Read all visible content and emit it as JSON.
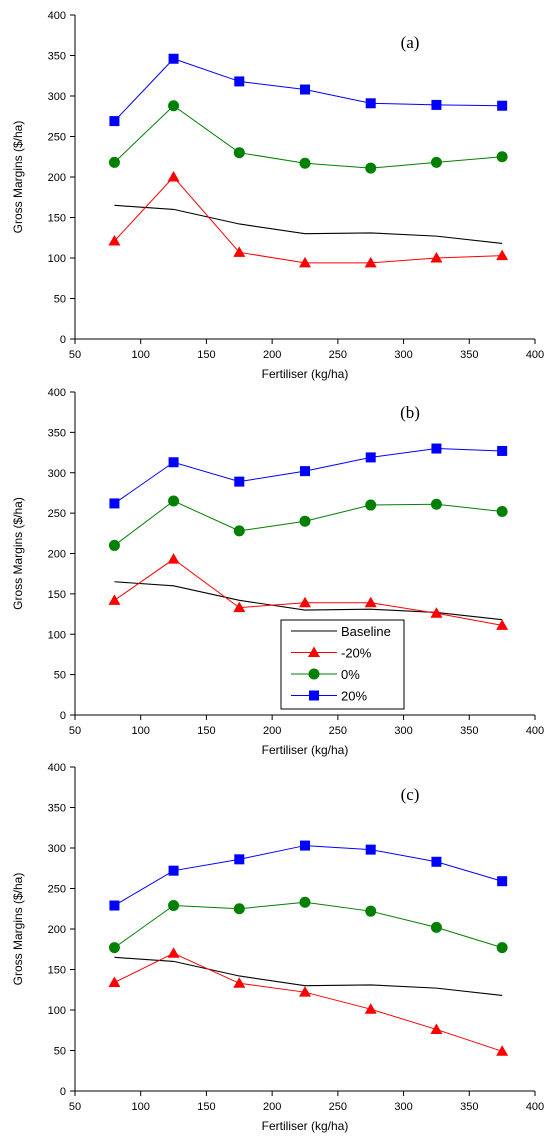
{
  "colors": {
    "baseline": "#000000",
    "minus20": "#ff0000",
    "zero": "#008000",
    "plus20": "#0000ff",
    "axis": "#000000"
  },
  "legend": {
    "entries": [
      {
        "label": "Baseline",
        "key": "baseline",
        "marker": "none"
      },
      {
        "label": "-20%",
        "key": "minus20",
        "marker": "triangle"
      },
      {
        "label": "0%",
        "key": "zero",
        "marker": "circle"
      },
      {
        "label": "20%",
        "key": "plus20",
        "marker": "square"
      }
    ]
  },
  "chart_data": [
    {
      "type": "line",
      "panel_label": "(a)",
      "xlabel": "Fertiliser (kg/ha)",
      "ylabel": "Gross Margins ($/ha)",
      "xlim": [
        50,
        400
      ],
      "ylim": [
        0,
        400
      ],
      "xticks": [
        50,
        100,
        150,
        200,
        250,
        300,
        350,
        400
      ],
      "yticks": [
        0,
        50,
        100,
        150,
        200,
        250,
        300,
        350,
        400
      ],
      "x": [
        80,
        125,
        175,
        225,
        275,
        325,
        375
      ],
      "series": [
        {
          "name": "Baseline",
          "key": "baseline",
          "marker": "none",
          "values": [
            165,
            160,
            142,
            130,
            131,
            127,
            118
          ]
        },
        {
          "name": "-20%",
          "key": "minus20",
          "marker": "triangle",
          "values": [
            121,
            200,
            107,
            94,
            94,
            100,
            103
          ]
        },
        {
          "name": "0%",
          "key": "zero",
          "marker": "circle",
          "values": [
            218,
            288,
            230,
            217,
            211,
            218,
            225
          ]
        },
        {
          "name": "20%",
          "key": "plus20",
          "marker": "square",
          "values": [
            269,
            346,
            318,
            308,
            291,
            289,
            288
          ]
        }
      ]
    },
    {
      "type": "line",
      "panel_label": "(b)",
      "xlabel": "Fertiliser (kg/ha)",
      "ylabel": "Gross Margins ($/ha)",
      "xlim": [
        50,
        400
      ],
      "ylim": [
        0,
        400
      ],
      "xticks": [
        50,
        100,
        150,
        200,
        250,
        300,
        350,
        400
      ],
      "yticks": [
        0,
        50,
        100,
        150,
        200,
        250,
        300,
        350,
        400
      ],
      "legend_position": "center",
      "x": [
        80,
        125,
        175,
        225,
        275,
        325,
        375
      ],
      "series": [
        {
          "name": "Baseline",
          "key": "baseline",
          "marker": "none",
          "values": [
            165,
            160,
            142,
            130,
            131,
            127,
            118
          ]
        },
        {
          "name": "-20%",
          "key": "minus20",
          "marker": "triangle",
          "values": [
            142,
            193,
            133,
            139,
            139,
            126,
            111
          ]
        },
        {
          "name": "0%",
          "key": "zero",
          "marker": "circle",
          "values": [
            210,
            265,
            228,
            240,
            260,
            261,
            252
          ]
        },
        {
          "name": "20%",
          "key": "plus20",
          "marker": "square",
          "values": [
            262,
            313,
            289,
            302,
            319,
            330,
            327
          ]
        }
      ]
    },
    {
      "type": "line",
      "panel_label": "(c)",
      "xlabel": "Fertiliser (kg/ha)",
      "ylabel": "Gross Margins ($/ha)",
      "xlim": [
        50,
        400
      ],
      "ylim": [
        0,
        400
      ],
      "xticks": [
        50,
        100,
        150,
        200,
        250,
        300,
        350,
        400
      ],
      "yticks": [
        0,
        50,
        100,
        150,
        200,
        250,
        300,
        350,
        400
      ],
      "x": [
        80,
        125,
        175,
        225,
        275,
        325,
        375
      ],
      "series": [
        {
          "name": "Baseline",
          "key": "baseline",
          "marker": "none",
          "values": [
            165,
            160,
            142,
            130,
            131,
            127,
            118
          ]
        },
        {
          "name": "-20%",
          "key": "minus20",
          "marker": "triangle",
          "values": [
            134,
            170,
            133,
            122,
            101,
            76,
            49
          ]
        },
        {
          "name": "0%",
          "key": "zero",
          "marker": "circle",
          "values": [
            177,
            229,
            225,
            233,
            222,
            202,
            177
          ]
        },
        {
          "name": "20%",
          "key": "plus20",
          "marker": "square",
          "values": [
            229,
            272,
            286,
            303,
            298,
            283,
            259
          ]
        }
      ]
    }
  ]
}
